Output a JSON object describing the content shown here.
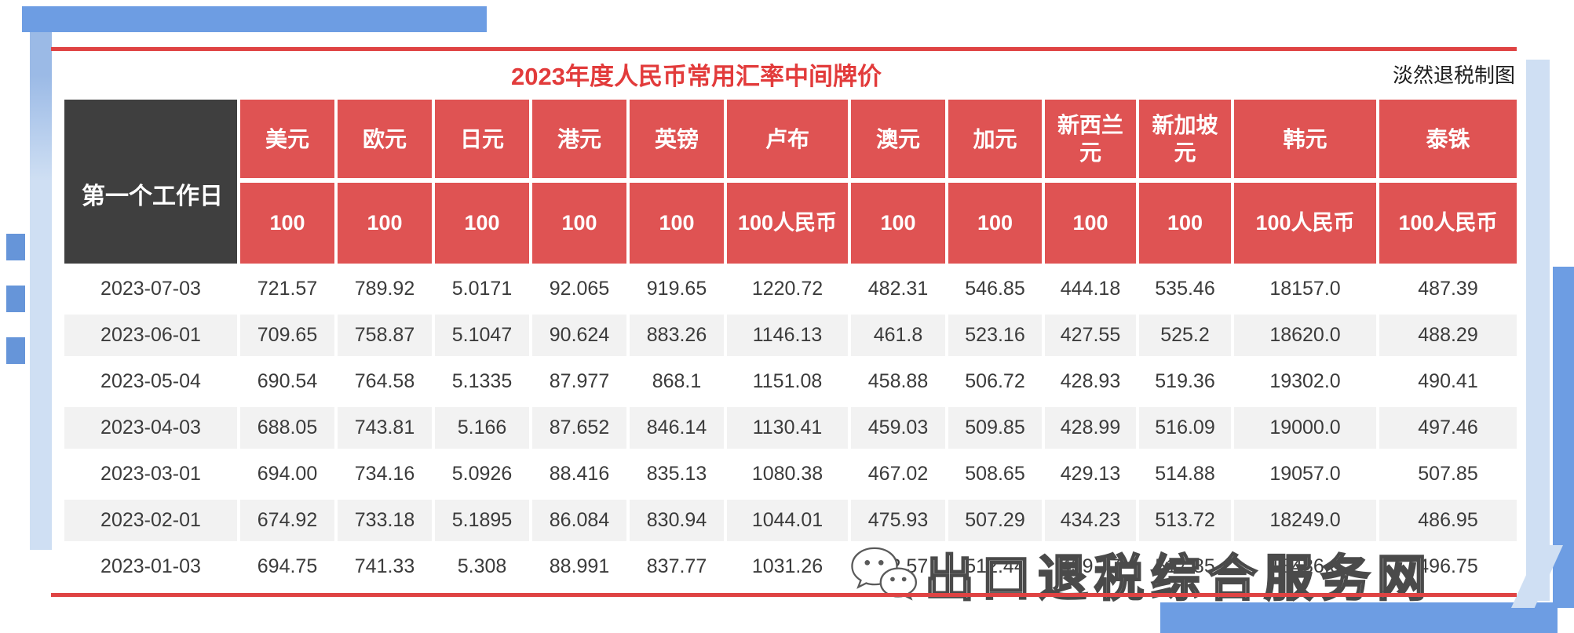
{
  "credit": "淡然退税制图",
  "watermark_text": "出口退税综合服务网",
  "colors": {
    "header_red": "#df5353",
    "title_red": "#e23b3b",
    "line_red": "#df4343",
    "corner_dark": "#3f3f3f",
    "stripe_gray": "#f2f2f2",
    "deco_blue": "#6d9de3",
    "deco_pale_blue": "#cfdff3"
  },
  "chart_data": {
    "type": "table",
    "title": "2023年度人民币常用汇率中间牌价",
    "corner_label": "第一个工作日",
    "columns": [
      "美元",
      "欧元",
      "日元",
      "港元",
      "英镑",
      "卢布",
      "澳元",
      "加元",
      "新西兰元",
      "新加坡元",
      "韩元",
      "泰铢"
    ],
    "units": [
      "100",
      "100",
      "100",
      "100",
      "100",
      "100人民币",
      "100",
      "100",
      "100",
      "100",
      "100人民币",
      "100人民币"
    ],
    "row_dates": [
      "2023-07-03",
      "2023-06-01",
      "2023-05-04",
      "2023-04-03",
      "2023-03-01",
      "2023-02-01",
      "2023-01-03"
    ],
    "rows": [
      [
        "721.57",
        "789.92",
        "5.0171",
        "92.065",
        "919.65",
        "1220.72",
        "482.31",
        "546.85",
        "444.18",
        "535.46",
        "18157.0",
        "487.39"
      ],
      [
        "709.65",
        "758.87",
        "5.1047",
        "90.624",
        "883.26",
        "1146.13",
        "461.8",
        "523.16",
        "427.55",
        "525.2",
        "18620.0",
        "488.29"
      ],
      [
        "690.54",
        "764.58",
        "5.1335",
        "87.977",
        "868.1",
        "1151.08",
        "458.88",
        "506.72",
        "428.93",
        "519.36",
        "19302.0",
        "490.41"
      ],
      [
        "688.05",
        "743.81",
        "5.166",
        "87.652",
        "846.14",
        "1130.41",
        "459.03",
        "509.85",
        "428.99",
        "516.09",
        "19000.0",
        "497.46"
      ],
      [
        "694.00",
        "734.16",
        "5.0926",
        "88.416",
        "835.13",
        "1080.38",
        "467.02",
        "508.65",
        "429.13",
        "514.88",
        "19057.0",
        "507.85"
      ],
      [
        "674.92",
        "733.18",
        "5.1895",
        "86.084",
        "830.94",
        "1044.01",
        "475.93",
        "507.29",
        "434.23",
        "513.72",
        "18249.0",
        "486.95"
      ],
      [
        "694.75",
        "741.33",
        "5.308",
        "88.991",
        "837.77",
        "1031.26",
        "472.57",
        "512.44",
        "439.27",
        "517.85",
        "18436.0",
        "496.75"
      ]
    ]
  }
}
